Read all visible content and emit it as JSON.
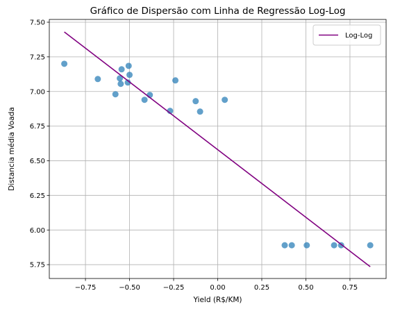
{
  "chart_data": {
    "type": "scatter",
    "title": "Gráfico de Dispersão com Linha de Regressão Log-Log",
    "xlabel": "Yield (R$/KM)",
    "ylabel": "Distancia média Voada",
    "xlim": [
      -0.955,
      0.955
    ],
    "ylim": [
      5.65,
      7.52
    ],
    "xticks": [
      -0.75,
      -0.5,
      -0.25,
      0.0,
      0.25,
      0.5,
      0.75
    ],
    "xtick_labels": [
      "−0.75",
      "−0.50",
      "−0.25",
      "0.00",
      "0.25",
      "0.50",
      "0.75"
    ],
    "yticks": [
      5.75,
      6.0,
      6.25,
      6.5,
      6.75,
      7.0,
      7.25,
      7.5
    ],
    "ytick_labels": [
      "5.75",
      "6.00",
      "6.25",
      "6.50",
      "6.75",
      "7.00",
      "7.25",
      "7.50"
    ],
    "grid": true,
    "legend_position": "top-right",
    "scatter": {
      "color": "#1f77b4",
      "points": [
        {
          "x": -0.87,
          "y": 7.2
        },
        {
          "x": -0.68,
          "y": 7.09
        },
        {
          "x": -0.58,
          "y": 6.98
        },
        {
          "x": -0.555,
          "y": 7.095
        },
        {
          "x": -0.55,
          "y": 7.055
        },
        {
          "x": -0.545,
          "y": 7.16
        },
        {
          "x": -0.51,
          "y": 7.065
        },
        {
          "x": -0.505,
          "y": 7.185
        },
        {
          "x": -0.5,
          "y": 7.12
        },
        {
          "x": -0.415,
          "y": 6.94
        },
        {
          "x": -0.385,
          "y": 6.975
        },
        {
          "x": -0.27,
          "y": 6.86
        },
        {
          "x": -0.24,
          "y": 7.08
        },
        {
          "x": -0.125,
          "y": 6.93
        },
        {
          "x": -0.1,
          "y": 6.855
        },
        {
          "x": 0.04,
          "y": 6.94
        },
        {
          "x": 0.38,
          "y": 5.89
        },
        {
          "x": 0.42,
          "y": 5.89
        },
        {
          "x": 0.505,
          "y": 5.89
        },
        {
          "x": 0.66,
          "y": 5.89
        },
        {
          "x": 0.7,
          "y": 5.89
        },
        {
          "x": 0.865,
          "y": 5.89
        }
      ]
    },
    "series": [
      {
        "name": "Log-Log",
        "type": "line",
        "color": "#800080",
        "x": [
          -0.87,
          0.865
        ],
        "y": [
          7.43,
          5.735
        ]
      }
    ]
  }
}
